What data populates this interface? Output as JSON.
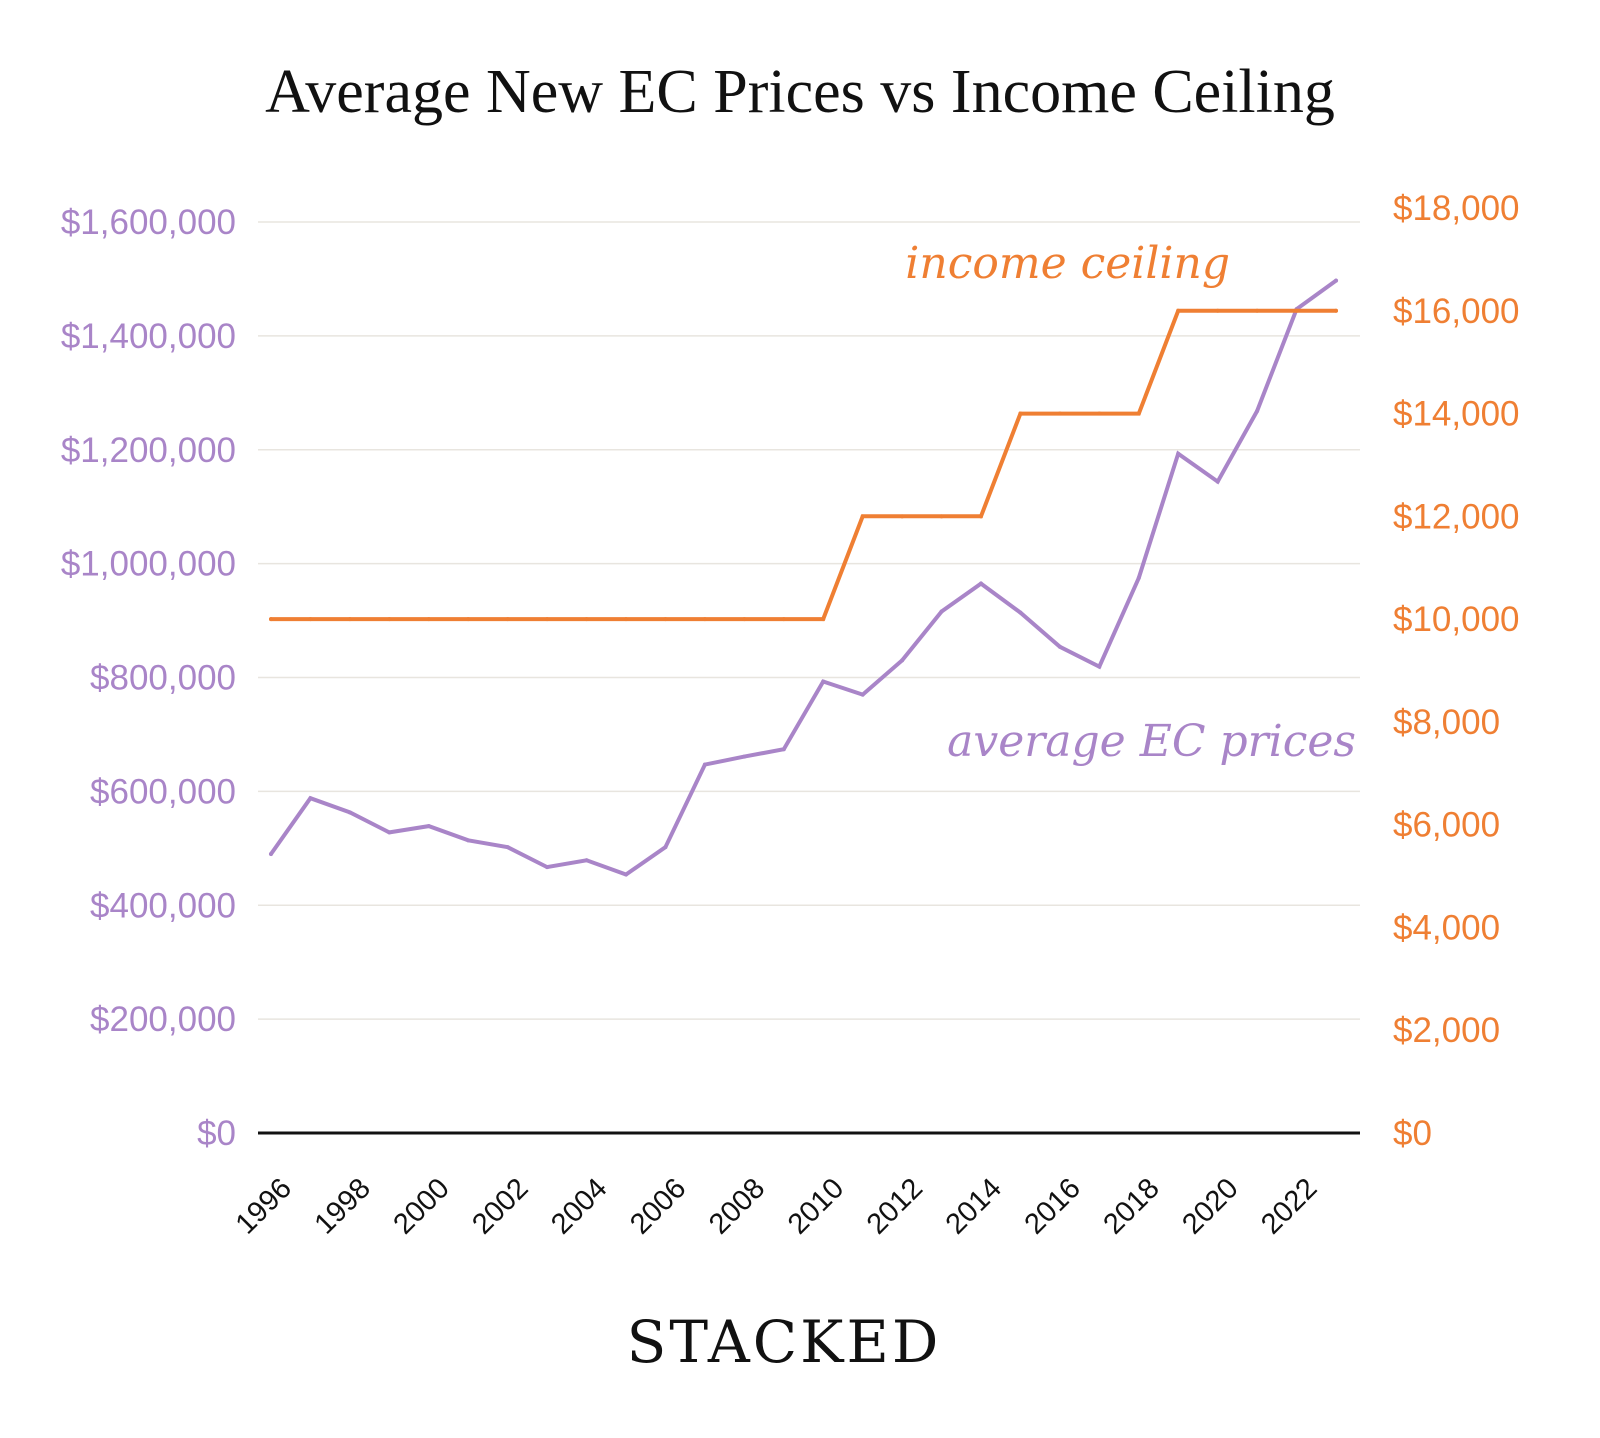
{
  "chart_data": {
    "type": "line",
    "title": "Average New EC Prices vs Income Ceiling",
    "x": [
      1996,
      1997,
      1998,
      1999,
      2000,
      2001,
      2002,
      2003,
      2004,
      2005,
      2006,
      2007,
      2008,
      2009,
      2010,
      2011,
      2012,
      2013,
      2014,
      2015,
      2016,
      2017,
      2018,
      2019,
      2020,
      2021,
      2022,
      2023
    ],
    "x_tick_labels": [
      "1996",
      "1998",
      "2000",
      "2002",
      "2004",
      "2006",
      "2008",
      "2010",
      "2012",
      "2014",
      "2016",
      "2018",
      "2020",
      "2022"
    ],
    "series": [
      {
        "name": "average EC prices",
        "axis": "left",
        "color": "#a985c8",
        "values": [
          490000,
          588000,
          563000,
          528000,
          539000,
          514000,
          502000,
          467000,
          479000,
          454000,
          502000,
          647000,
          661000,
          674000,
          793000,
          770000,
          830000,
          916000,
          965000,
          914000,
          854000,
          819000,
          975000,
          1193000,
          1144000,
          1268000,
          1447000,
          1497000
        ]
      },
      {
        "name": "income ceiling",
        "axis": "right",
        "color": "#ef7f33",
        "values": [
          10000,
          10000,
          10000,
          10000,
          10000,
          10000,
          10000,
          10000,
          10000,
          10000,
          10000,
          10000,
          10000,
          10000,
          10000,
          12000,
          12000,
          12000,
          12000,
          14000,
          14000,
          14000,
          14000,
          16000,
          16000,
          16000,
          16000,
          16000
        ]
      }
    ],
    "left_axis": {
      "ylim": [
        0,
        1600000
      ],
      "tick_labels": [
        "$0",
        "$200,000",
        "$400,000",
        "$600,000",
        "$800,000",
        "$1,000,000",
        "$1,200,000",
        "$1,400,000",
        "$1,600,000"
      ],
      "color": "#a985c8"
    },
    "right_axis": {
      "ylim": [
        0,
        18000
      ],
      "tick_labels": [
        "$0",
        "$2,000",
        "$4,000",
        "$6,000",
        "$8,000",
        "$10,000",
        "$12,000",
        "$14,000",
        "$16,000",
        "$18,000"
      ],
      "color": "#ef7f33"
    },
    "grid": true,
    "annotations": [
      "income ceiling",
      "average EC prices"
    ]
  },
  "logo": "STACKED"
}
